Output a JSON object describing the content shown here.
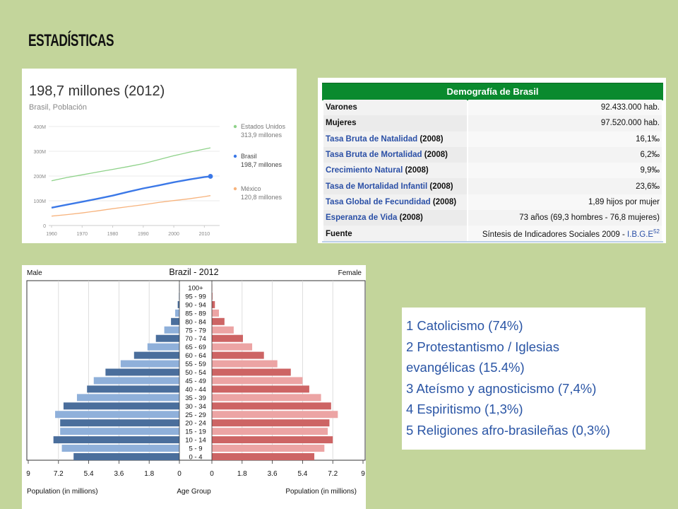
{
  "slide": {
    "title": "ESTADÍSTICAS"
  },
  "colors": {
    "background": "#c3d59b",
    "usa": "#8fd28a",
    "brasil": "#3b78e7",
    "mexico": "#f7b37d",
    "male": "#4a6e9c",
    "male_light": "#8fb0da",
    "female": "#cd6464",
    "female_light": "#eca4a4",
    "table_header": "#0a8a2e",
    "link": "#2a4fa6",
    "religion_text": "#2a55a5"
  },
  "population_chart": {
    "headline": "198,7 millones (2012)",
    "subtitle": "Brasil, Población",
    "y_ticks": [
      "0",
      "100M",
      "200M",
      "300M",
      "400M"
    ],
    "x_ticks": [
      "1960",
      "1970",
      "1980",
      "1990",
      "2000",
      "2010"
    ],
    "legend": [
      {
        "name": "Estados Unidos",
        "value": "313,9 millones"
      },
      {
        "name": "Brasil",
        "value": "198,7 millones"
      },
      {
        "name": "México",
        "value": "120,8 millones"
      }
    ]
  },
  "demographics_table": {
    "header": "Demografía de Brasil",
    "rows": [
      {
        "label": "Varones",
        "year": "",
        "value": "92.433.000 hab.",
        "style": "bold"
      },
      {
        "label": "Mujeres",
        "year": "",
        "value": "97.520.000 hab.",
        "style": "bold"
      },
      {
        "label": "Tasa Bruta de Natalidad",
        "year": " (2008)",
        "value": "16,1‰",
        "style": "link"
      },
      {
        "label": "Tasa Bruta de Mortalidad",
        "year": " (2008)",
        "value": "6,2‰",
        "style": "link"
      },
      {
        "label": "Crecimiento Natural",
        "year": " (2008)",
        "value": "9,9‰",
        "style": "link"
      },
      {
        "label": "Tasa de Mortalidad Infantil",
        "year": " (2008)",
        "value": "23,6‰",
        "style": "link"
      },
      {
        "label": "Tasa Global de Fecundidad",
        "year": " (2008)",
        "value": "1,89 hijos por mujer",
        "style": "link"
      },
      {
        "label": "Esperanza de Vida",
        "year": " (2008)",
        "value": "73 años (69,3 hombres - 76,8 mujeres)",
        "style": "link"
      }
    ],
    "source": {
      "label": "Fuente",
      "text": "Síntesis de Indicadores Sociales 2009 - ",
      "link": "I.B.G.E",
      "ref": "52"
    }
  },
  "pyramid": {
    "title": "Brazil - 2012",
    "male_label": "Male",
    "female_label": "Female",
    "x_left_label": "Population (in millions)",
    "x_center_label": "Age Group",
    "x_right_label": "Population (in millions)",
    "x_ticks": [
      "9",
      "7.2",
      "5.4",
      "3.6",
      "1.8",
      "0",
      "0",
      "1.8",
      "3.6",
      "5.4",
      "7.2",
      "9"
    ]
  },
  "religion": {
    "items": [
      "1 Catolicismo (74%)",
      "2 Protestantismo / Iglesias",
      "evangélicas (15.4%)",
      "3 Ateísmo y agnosticismo (7,4%)",
      "4 Espiritismo (1,3%)",
      "5 Religiones afro-brasileñas (0,3%)"
    ]
  },
  "chart_data": [
    {
      "type": "line",
      "title": "198,7 millones (2012)",
      "subtitle": "Brasil, Población",
      "xlabel": "",
      "ylabel": "",
      "xlim": [
        1960,
        2012
      ],
      "ylim": [
        0,
        400
      ],
      "x": [
        1960,
        1965,
        1970,
        1975,
        1980,
        1985,
        1990,
        1995,
        2000,
        2005,
        2010,
        2012
      ],
      "series": [
        {
          "name": "Estados Unidos",
          "values": [
            181,
            194,
            205,
            216,
            227,
            238,
            250,
            266,
            282,
            296,
            309,
            313.9
          ]
        },
        {
          "name": "Brasil",
          "values": [
            72,
            84,
            96,
            108,
            121,
            136,
            150,
            162,
            175,
            186,
            196,
            198.7
          ]
        },
        {
          "name": "México",
          "values": [
            38,
            44,
            51,
            59,
            68,
            76,
            84,
            93,
            101,
            108,
            117,
            120.8
          ]
        }
      ],
      "grid": true,
      "legend": "right"
    },
    {
      "type": "bar",
      "orientation": "horizontal",
      "title": "Brazil - 2012",
      "xlabel": "Population (in millions)",
      "ylabel": "Age Group",
      "xlim": [
        0,
        9
      ],
      "categories": [
        "100+",
        "95 - 99",
        "90 - 94",
        "85 - 89",
        "80 - 84",
        "75 - 79",
        "70 - 74",
        "65 - 69",
        "60 - 64",
        "55 - 59",
        "50 - 54",
        "45 - 49",
        "40 - 44",
        "35 - 39",
        "30 - 34",
        "25 - 29",
        "20 - 24",
        "15 - 19",
        "10 - 14",
        "5 - 9",
        "0 - 4"
      ],
      "series": [
        {
          "name": "Male",
          "values": [
            0.01,
            0.03,
            0.1,
            0.25,
            0.5,
            0.9,
            1.4,
            1.9,
            2.7,
            3.5,
            4.4,
            5.1,
            5.5,
            6.1,
            6.9,
            7.4,
            7.1,
            7.1,
            7.5,
            7.0,
            6.3
          ]
        },
        {
          "name": "Female",
          "values": [
            0.01,
            0.05,
            0.18,
            0.42,
            0.75,
            1.3,
            1.85,
            2.4,
            3.1,
            3.9,
            4.7,
            5.4,
            5.8,
            6.5,
            7.1,
            7.5,
            7.0,
            6.9,
            7.2,
            6.7,
            6.1
          ]
        }
      ],
      "legend": "top"
    }
  ]
}
